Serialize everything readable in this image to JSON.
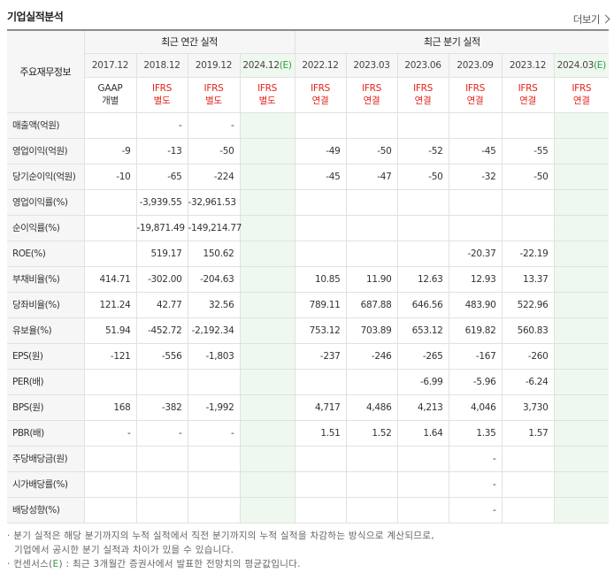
{
  "title": "기업실적분석",
  "more": "더보기",
  "header": {
    "rowhead": "주요재무정보",
    "annual_group": "최근 연간 실적",
    "quarter_group": "최근 분기 실적",
    "periods": [
      "2017.12",
      "2018.12",
      "2019.12",
      "2024.12(E)",
      "2022.12",
      "2023.03",
      "2023.06",
      "2023.09",
      "2023.12",
      "2024.03(E)"
    ],
    "std_top": [
      "GAAP",
      "IFRS",
      "IFRS",
      "IFRS",
      "IFRS",
      "IFRS",
      "IFRS",
      "IFRS",
      "IFRS",
      "IFRS"
    ],
    "std_bot": [
      "개별",
      "별도",
      "별도",
      "별도",
      "연결",
      "연결",
      "연결",
      "연결",
      "연결",
      "연결"
    ]
  },
  "rows": [
    {
      "label": "매출액(억원)",
      "values": [
        "",
        "-",
        "-",
        "",
        "",
        "",
        "",
        "",
        "",
        ""
      ]
    },
    {
      "label": "영업이익(억원)",
      "values": [
        "-9",
        "-13",
        "-50",
        "",
        "-49",
        "-50",
        "-52",
        "-45",
        "-55",
        ""
      ]
    },
    {
      "label": "당기순이익(억원)",
      "values": [
        "-10",
        "-65",
        "-224",
        "",
        "-45",
        "-47",
        "-50",
        "-32",
        "-50",
        ""
      ]
    },
    {
      "label": "영업이익률(%)",
      "values": [
        "",
        "-3,939.55",
        "-32,961.53",
        "",
        "",
        "",
        "",
        "",
        "",
        ""
      ]
    },
    {
      "label": "순이익률(%)",
      "values": [
        "",
        "-19,871.49",
        "-149,214.77",
        "",
        "",
        "",
        "",
        "",
        "",
        ""
      ]
    },
    {
      "label": "ROE(%)",
      "values": [
        "",
        "519.17",
        "150.62",
        "",
        "",
        "",
        "",
        "-20.37",
        "-22.19",
        ""
      ]
    },
    {
      "label": "부채비율(%)",
      "values": [
        "414.71",
        "-302.00",
        "-204.63",
        "",
        "10.85",
        "11.90",
        "12.63",
        "12.93",
        "13.37",
        ""
      ]
    },
    {
      "label": "당좌비율(%)",
      "values": [
        "121.24",
        "42.77",
        "32.56",
        "",
        "789.11",
        "687.88",
        "646.56",
        "483.90",
        "522.96",
        ""
      ]
    },
    {
      "label": "유보율(%)",
      "values": [
        "51.94",
        "-452.72",
        "-2,192.34",
        "",
        "753.12",
        "703.89",
        "653.12",
        "619.82",
        "560.83",
        ""
      ]
    },
    {
      "label": "EPS(원)",
      "values": [
        "-121",
        "-556",
        "-1,803",
        "",
        "-237",
        "-246",
        "-265",
        "-167",
        "-260",
        ""
      ]
    },
    {
      "label": "PER(배)",
      "values": [
        "",
        "",
        "",
        "",
        "",
        "",
        "-6.99",
        "-5.96",
        "-6.24",
        ""
      ]
    },
    {
      "label": "BPS(원)",
      "values": [
        "168",
        "-382",
        "-1,992",
        "",
        "4,717",
        "4,486",
        "4,213",
        "4,046",
        "3,730",
        ""
      ]
    },
    {
      "label": "PBR(배)",
      "values": [
        "-",
        "-",
        "-",
        "",
        "1.51",
        "1.52",
        "1.64",
        "1.35",
        "1.57",
        ""
      ]
    },
    {
      "label": "주당배당금(원)",
      "values": [
        "",
        "",
        "",
        "",
        "",
        "",
        "",
        "-",
        "",
        ""
      ]
    },
    {
      "label": "시가배당률(%)",
      "values": [
        "",
        "",
        "",
        "",
        "",
        "",
        "",
        "-",
        "",
        ""
      ]
    },
    {
      "label": "배당성향(%)",
      "values": [
        "",
        "",
        "",
        "",
        "",
        "",
        "",
        "-",
        "",
        ""
      ]
    }
  ],
  "notes": {
    "line1": "· 분기 실적은 해당 분기까지의 누적 실적에서 직전 분기까지의 누적 실적을 차감하는 방식으로 계산되므로,",
    "line2": "기업에서 공시한 분기 실적과 차이가 있을 수 있습니다.",
    "line3a": "· 컨센서스(",
    "line3e": "E",
    "line3b": ") : 최근 3개월간 증권사에서 발표한 전망치의 평균값입니다."
  },
  "colors": {
    "negative": "#e2231a",
    "estimate_bg": "#eff8ee",
    "header_bg": "#f6f6f6",
    "est_mark": "#2e9e3f"
  }
}
